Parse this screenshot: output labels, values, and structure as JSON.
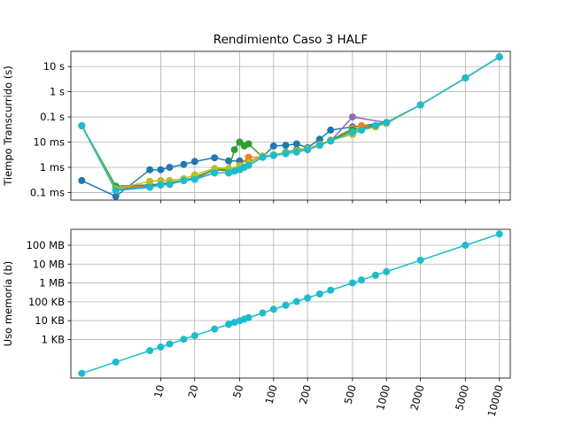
{
  "chart_data": [
    {
      "type": "line",
      "title": "Rendimiento Caso 3 HALF",
      "ylabel": "Tiempo Transcurrido (s)",
      "yscale": "log",
      "xscale": "log",
      "grid": true,
      "yticks": [
        {
          "v": 0.0001,
          "label": "0.1 ms"
        },
        {
          "v": 0.001,
          "label": "1 ms"
        },
        {
          "v": 0.01,
          "label": "10 ms"
        },
        {
          "v": 0.1,
          "label": "0.1 s"
        },
        {
          "v": 1,
          "label": "1 s"
        },
        {
          "v": 10,
          "label": "10 s"
        }
      ],
      "series": [
        {
          "color": "#1f77b4",
          "x": [
            2,
            4,
            8,
            10,
            12,
            16,
            20,
            30,
            40,
            50,
            60,
            80,
            100,
            128,
            160,
            200,
            256,
            320,
            500,
            1000,
            2000,
            5000,
            10000
          ],
          "y": [
            0.0003,
            7e-05,
            0.0008,
            0.0008,
            0.001,
            0.0013,
            0.0017,
            0.0024,
            0.0018,
            0.0018,
            0.0017,
            0.0026,
            0.007,
            0.0075,
            0.0085,
            0.006,
            0.013,
            0.03,
            0.04,
            0.06,
            0.3,
            3.5,
            24
          ]
        },
        {
          "color": "#ff7f0e",
          "x": [
            2,
            4,
            8,
            10,
            12,
            16,
            20,
            30,
            40,
            50,
            60,
            80,
            100,
            128,
            160,
            200,
            256,
            320,
            500,
            600,
            800,
            1000,
            2000,
            5000,
            10000
          ],
          "y": [
            0.045,
            0.00015,
            0.0002,
            0.0002,
            0.00025,
            0.0003,
            0.00035,
            0.0008,
            0.0007,
            0.0012,
            0.0025,
            0.0025,
            0.003,
            0.0038,
            0.0045,
            0.0055,
            0.008,
            0.012,
            0.035,
            0.045,
            0.045,
            0.06,
            0.3,
            3.5,
            24
          ]
        },
        {
          "color": "#2ca02c",
          "x": [
            2,
            4,
            8,
            10,
            12,
            16,
            20,
            30,
            40,
            45,
            50,
            55,
            60,
            80,
            100,
            128,
            160,
            200,
            256,
            320,
            500,
            1000,
            2000,
            5000,
            10000
          ],
          "y": [
            0.045,
            0.00018,
            0.0002,
            0.00022,
            0.00025,
            0.0003,
            0.0004,
            0.0008,
            0.0008,
            0.005,
            0.01,
            0.007,
            0.0085,
            0.0025,
            0.003,
            0.004,
            0.005,
            0.0055,
            0.008,
            0.012,
            0.03,
            0.06,
            0.3,
            3.5,
            24
          ]
        },
        {
          "color": "#9467bd",
          "x": [
            2,
            4,
            8,
            10,
            12,
            16,
            20,
            30,
            40,
            50,
            60,
            80,
            100,
            128,
            160,
            200,
            256,
            320,
            500,
            1000,
            2000,
            5000,
            10000
          ],
          "y": [
            0.045,
            0.00013,
            0.00018,
            0.0002,
            0.00022,
            0.0003,
            0.00035,
            0.0006,
            0.0006,
            0.0008,
            0.0012,
            0.0025,
            0.003,
            0.0035,
            0.0042,
            0.005,
            0.0075,
            0.011,
            0.1,
            0.06,
            0.3,
            3.5,
            24
          ]
        },
        {
          "color": "#bcbd22",
          "x": [
            2,
            4,
            8,
            10,
            12,
            16,
            20,
            30,
            40,
            50,
            60,
            80,
            100,
            128,
            160,
            200,
            256,
            320,
            500,
            600,
            800,
            1000,
            2000,
            5000,
            10000
          ],
          "y": [
            0.045,
            0.00014,
            0.00028,
            0.0003,
            0.0003,
            0.00035,
            0.0005,
            0.0009,
            0.0009,
            0.0011,
            0.0015,
            0.0028,
            0.0032,
            0.0038,
            0.0045,
            0.0055,
            0.008,
            0.012,
            0.02,
            0.03,
            0.04,
            0.055,
            0.3,
            3.5,
            24
          ]
        },
        {
          "color": "#17becf",
          "x": [
            2,
            4,
            8,
            10,
            12,
            16,
            20,
            30,
            40,
            45,
            50,
            55,
            60,
            80,
            100,
            128,
            160,
            200,
            256,
            320,
            500,
            600,
            800,
            1000,
            2000,
            5000,
            10000
          ],
          "y": [
            0.045,
            0.00012,
            0.00016,
            0.0002,
            0.00021,
            0.0003,
            0.00033,
            0.0006,
            0.0006,
            0.0007,
            0.0008,
            0.001,
            0.0012,
            0.0025,
            0.003,
            0.0035,
            0.004,
            0.005,
            0.0075,
            0.011,
            0.025,
            0.03,
            0.045,
            0.06,
            0.3,
            3.5,
            24
          ]
        }
      ]
    },
    {
      "type": "line",
      "ylabel": "Uso memoria (b)",
      "yscale": "log",
      "xscale": "log",
      "grid": true,
      "yticks": [
        {
          "v": 1000,
          "label": "1 KB"
        },
        {
          "v": 10000,
          "label": "10 KB"
        },
        {
          "v": 100000,
          "label": "100 KB"
        },
        {
          "v": 1000000,
          "label": "1 MB"
        },
        {
          "v": 10000000,
          "label": "10 MB"
        },
        {
          "v": 100000000,
          "label": "100 MB"
        }
      ],
      "xticks": [
        10,
        20,
        50,
        100,
        200,
        500,
        1000,
        2000,
        5000,
        10000
      ],
      "series": [
        {
          "color": "#17becf",
          "x": [
            2,
            4,
            8,
            10,
            12,
            16,
            20,
            30,
            40,
            45,
            50,
            55,
            60,
            80,
            100,
            128,
            160,
            200,
            256,
            320,
            500,
            600,
            800,
            1000,
            2000,
            5000,
            10000
          ],
          "y": [
            16,
            64,
            256,
            400,
            576,
            1024,
            1600,
            3600,
            6400,
            8100,
            10000,
            12100,
            14400,
            25600,
            40000,
            65536,
            102400,
            160000,
            262144,
            409600,
            1000000,
            1440000,
            2560000,
            4000000,
            16000000,
            100000000,
            400000000
          ]
        }
      ]
    }
  ]
}
